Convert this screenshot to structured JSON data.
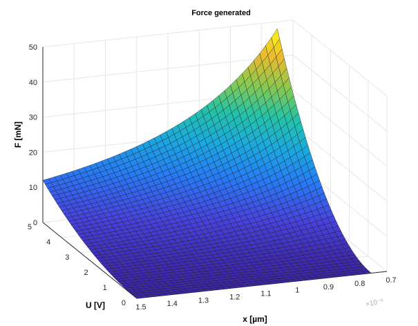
{
  "chart_data": {
    "type": "surface",
    "title": "Force generated",
    "xlabel": "x [µm]",
    "ylabel": "U [V]",
    "zlabel": "F [mN]",
    "x_exponent": "×10⁻⁶",
    "xlim": [
      0.7,
      1.5
    ],
    "ylim": [
      0,
      5
    ],
    "zlim": [
      0,
      50
    ],
    "x_ticks": [
      {
        "value": 0.7,
        "label": "0.7"
      },
      {
        "value": 0.8,
        "label": "0.8"
      },
      {
        "value": 0.9,
        "label": "0.9"
      },
      {
        "value": 1.0,
        "label": "1"
      },
      {
        "value": 1.1,
        "label": "1.1"
      },
      {
        "value": 1.2,
        "label": "1.2"
      },
      {
        "value": 1.3,
        "label": "1.3"
      },
      {
        "value": 1.4,
        "label": "1.4"
      },
      {
        "value": 1.5,
        "label": "1.5"
      }
    ],
    "y_ticks": [
      {
        "value": 0,
        "label": "0"
      },
      {
        "value": 1,
        "label": "1"
      },
      {
        "value": 2,
        "label": "2"
      },
      {
        "value": 3,
        "label": "3"
      },
      {
        "value": 4,
        "label": "4"
      },
      {
        "value": 5,
        "label": "5"
      }
    ],
    "z_ticks": [
      {
        "value": 0,
        "label": "0"
      },
      {
        "value": 10,
        "label": "10"
      },
      {
        "value": 20,
        "label": "20"
      },
      {
        "value": 30,
        "label": "30"
      },
      {
        "value": 40,
        "label": "40"
      },
      {
        "value": 50,
        "label": "50"
      }
    ],
    "x_range_data": [
      0.75,
      1.5
    ],
    "u_range_data": [
      0,
      5
    ],
    "grid_points": [
      40,
      40
    ],
    "corner_values": [
      {
        "x": 0.75,
        "U": 5,
        "F": 48
      },
      {
        "x": 1.5,
        "U": 5,
        "F": 12
      },
      {
        "x": 0.75,
        "U": 0,
        "F": 0
      },
      {
        "x": 1.5,
        "U": 0,
        "F": 0
      }
    ],
    "colormap": [
      "#3e26a8",
      "#4744e0",
      "#277af6",
      "#1aa9df",
      "#23c3a6",
      "#8bc94e",
      "#ecba2f",
      "#f9fb15"
    ],
    "grid": true,
    "view": "3d"
  }
}
